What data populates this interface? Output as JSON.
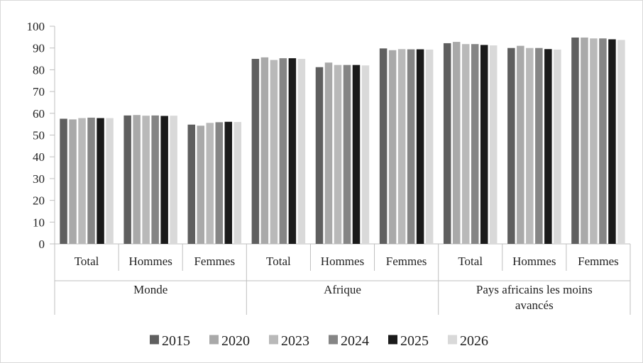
{
  "chart_data": {
    "type": "bar",
    "ylim": [
      0,
      100
    ],
    "yticks": [
      0,
      10,
      20,
      30,
      40,
      50,
      60,
      70,
      80,
      90,
      100
    ],
    "grid": false,
    "legend_position": "bottom",
    "groups": [
      {
        "label": "Monde",
        "categories": [
          "Total",
          "Hommes",
          "Femmes"
        ]
      },
      {
        "label": "Afrique",
        "categories": [
          "Total",
          "Hommes",
          "Femmes"
        ]
      },
      {
        "label": "Pays africains les moins avancés",
        "label_lines": [
          "Pays africains les moins",
          "avancés"
        ],
        "categories": [
          "Total",
          "Hommes",
          "Femmes"
        ]
      }
    ],
    "series": [
      {
        "name": "2015",
        "color": "#5f5f5f",
        "values": [
          57.5,
          59.0,
          54.8,
          85.0,
          81.2,
          89.8,
          92.2,
          90.0,
          94.8
        ]
      },
      {
        "name": "2020",
        "color": "#a9a9a9",
        "values": [
          57.2,
          59.2,
          54.3,
          85.7,
          83.3,
          89.0,
          92.8,
          91.0,
          94.8
        ]
      },
      {
        "name": "2023",
        "color": "#b9b9b9",
        "values": [
          57.8,
          58.9,
          55.6,
          84.5,
          82.2,
          89.5,
          91.8,
          90.0,
          94.4
        ]
      },
      {
        "name": "2024",
        "color": "#858585",
        "values": [
          58.0,
          59.0,
          55.9,
          85.3,
          82.2,
          89.4,
          91.8,
          90.0,
          94.4
        ]
      },
      {
        "name": "2025",
        "color": "#1a1a1a",
        "values": [
          57.8,
          58.8,
          56.1,
          85.3,
          82.2,
          89.4,
          91.4,
          89.5,
          94.0
        ]
      },
      {
        "name": "2026",
        "color": "#d9d9d9",
        "values": [
          57.8,
          58.9,
          56.0,
          85.0,
          82.0,
          89.3,
          91.2,
          89.3,
          93.7
        ]
      }
    ]
  }
}
